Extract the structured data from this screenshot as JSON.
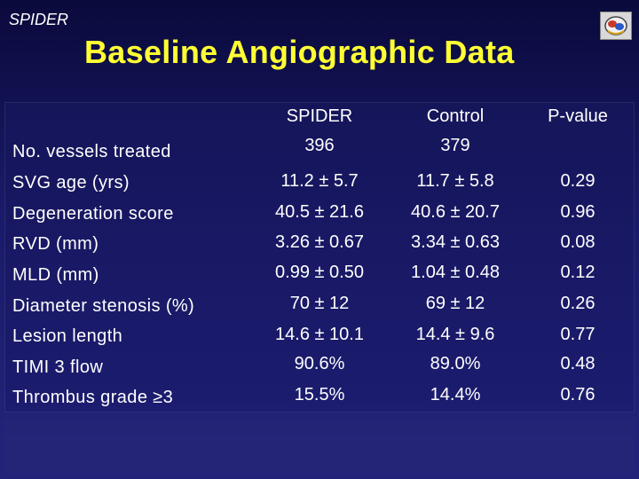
{
  "header": {
    "top_label": "SPIDER",
    "title": "Baseline Angiographic Data"
  },
  "table": {
    "columns": [
      "SPIDER",
      "Control",
      "P-value"
    ],
    "rows": [
      {
        "label": "No. vessels treated",
        "spider": "396",
        "control": "379",
        "p": ""
      },
      {
        "label": "SVG age (yrs)",
        "spider": "11.2 ± 5.7",
        "control": "11.7 ± 5.8",
        "p": "0.29"
      },
      {
        "label": "Degeneration score",
        "spider": "40.5 ± 21.6",
        "control": "40.6 ± 20.7",
        "p": "0.96"
      },
      {
        "label": "RVD (mm)",
        "spider": "3.26 ± 0.67",
        "control": "3.34 ± 0.63",
        "p": "0.08"
      },
      {
        "label": "MLD (mm)",
        "spider": "0.99 ± 0.50",
        "control": "1.04 ± 0.48",
        "p": "0.12"
      },
      {
        "label": "Diameter stenosis (%)",
        "spider": "70 ± 12",
        "control": "69 ± 12",
        "p": "0.26"
      },
      {
        "label": "Lesion length",
        "spider": "14.6 ± 10.1",
        "control": "14.4 ± 9.6",
        "p": "0.77"
      },
      {
        "label": "TIMI 3 flow",
        "spider": "90.6%",
        "control": "89.0%",
        "p": "0.48"
      },
      {
        "label": "Thrombus grade ≥3",
        "spider": "15.5%",
        "control": "14.4%",
        "p": "0.76"
      }
    ]
  },
  "colors": {
    "title": "#ffff33",
    "text": "#ffffff",
    "background": "#1a1a6a"
  }
}
